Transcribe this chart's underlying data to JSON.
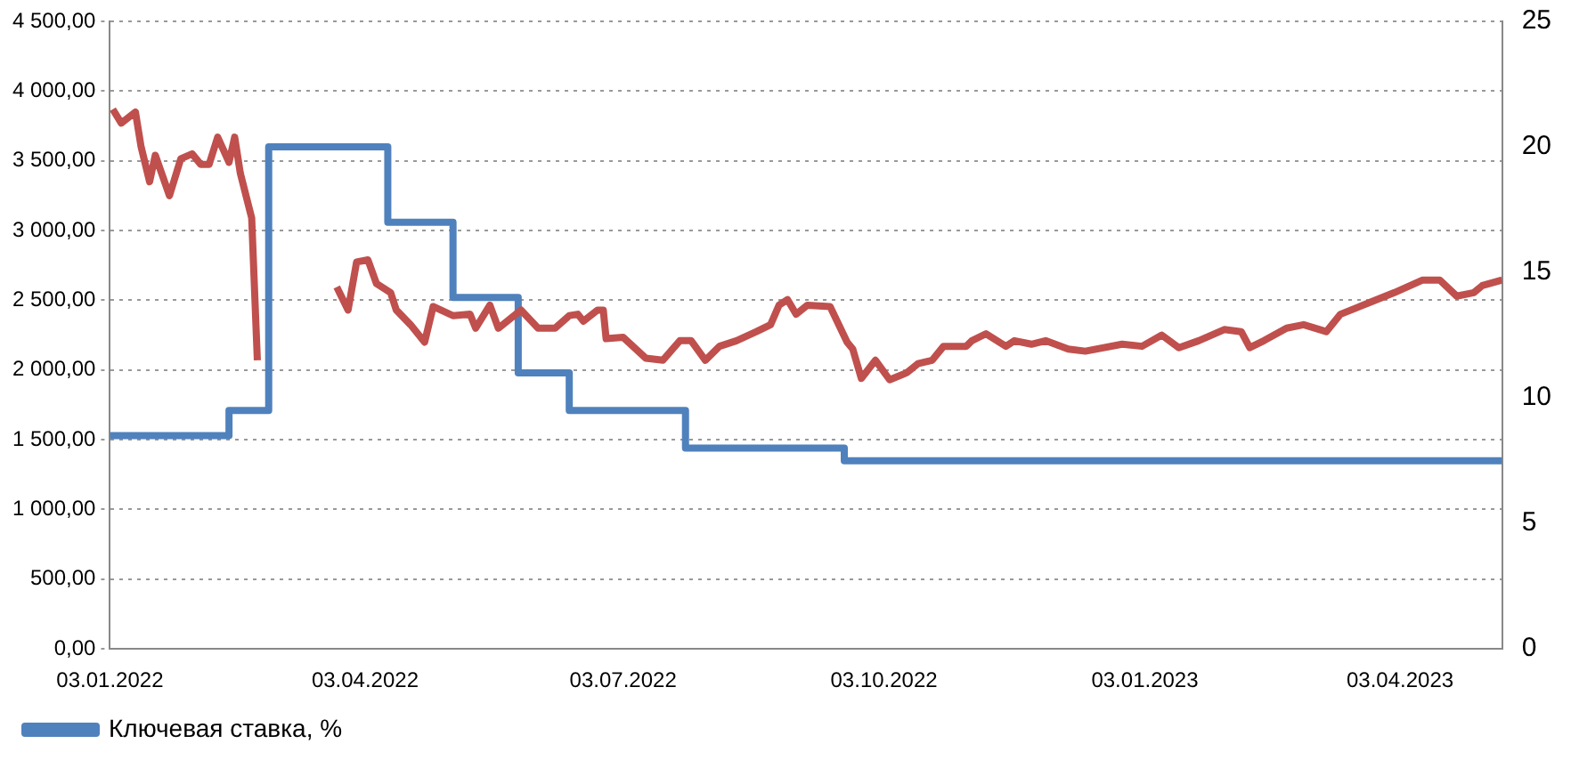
{
  "chart_data": {
    "type": "line",
    "grid": "y",
    "legend": "bottom",
    "marker": "none",
    "xlim": [
      "2022-01-03",
      "2023-05-09"
    ],
    "xticks": [
      {
        "value": "2022-01-03",
        "label": "03.01.2022"
      },
      {
        "value": "2022-04-03",
        "label": "03.04.2022"
      },
      {
        "value": "2022-07-03",
        "label": "03.07.2022"
      },
      {
        "value": "2022-10-03",
        "label": "03.10.2022"
      },
      {
        "value": "2023-01-03",
        "label": "03.01.2023"
      },
      {
        "value": "2023-04-03",
        "label": "03.04.2023"
      }
    ],
    "ylim": [
      0,
      4500
    ],
    "yticks": [
      {
        "value": 0,
        "label": "0,00"
      },
      {
        "value": 500,
        "label": "500,00"
      },
      {
        "value": 1000,
        "label": "1 000,00"
      },
      {
        "value": 1500,
        "label": "1 500,00"
      },
      {
        "value": 2000,
        "label": "2 000,00"
      },
      {
        "value": 2500,
        "label": "2 500,00"
      },
      {
        "value": 3000,
        "label": "3 000,00"
      },
      {
        "value": 3500,
        "label": "3 500,00"
      },
      {
        "value": 4000,
        "label": "4 000,00"
      },
      {
        "value": 4500,
        "label": "4 500,00"
      }
    ],
    "y2lim": [
      0,
      25
    ],
    "y2ticks": [
      0,
      5,
      10,
      15,
      20,
      25
    ],
    "series": [
      {
        "type": "line",
        "color": "#c0504d",
        "x": [
          "2022-01-04",
          "2022-01-07",
          "2022-01-12",
          "2022-01-14",
          "2022-01-17",
          "2022-01-19",
          "2022-01-24",
          "2022-01-28",
          "2022-02-01",
          "2022-02-04",
          "2022-02-07",
          "2022-02-10",
          "2022-02-14",
          "2022-02-16",
          "2022-02-18",
          "2022-02-22",
          "2022-02-24",
          "2022-03-10",
          "2022-03-24",
          "2022-03-28",
          "2022-03-31",
          "2022-04-04",
          "2022-04-07",
          "2022-04-12",
          "2022-04-14",
          "2022-04-19",
          "2022-04-24",
          "2022-04-27",
          "2022-05-04",
          "2022-05-10",
          "2022-05-12",
          "2022-05-17",
          "2022-05-20",
          "2022-05-28",
          "2022-06-03",
          "2022-06-09",
          "2022-06-14",
          "2022-06-17",
          "2022-06-19",
          "2022-06-24",
          "2022-06-26",
          "2022-06-27",
          "2022-07-03",
          "2022-07-11",
          "2022-07-17",
          "2022-07-23",
          "2022-07-27",
          "2022-08-01",
          "2022-08-06",
          "2022-08-12",
          "2022-08-19",
          "2022-08-24",
          "2022-08-27",
          "2022-08-30",
          "2022-09-02",
          "2022-09-06",
          "2022-09-14",
          "2022-09-20",
          "2022-09-22",
          "2022-09-25",
          "2022-09-30",
          "2022-10-05",
          "2022-10-11",
          "2022-10-15",
          "2022-10-20",
          "2022-10-24",
          "2022-11-01",
          "2022-11-03",
          "2022-11-08",
          "2022-11-15",
          "2022-11-18",
          "2022-11-24",
          "2022-11-29",
          "2022-12-07",
          "2022-12-13",
          "2022-12-26",
          "2023-01-02",
          "2023-01-09",
          "2023-01-15",
          "2023-01-22",
          "2023-01-31",
          "2023-02-06",
          "2023-02-09",
          "2023-02-14",
          "2023-02-22",
          "2023-02-28",
          "2023-03-08",
          "2023-03-13",
          "2023-03-24",
          "2023-04-01",
          "2023-04-11",
          "2023-04-17",
          "2023-04-23",
          "2023-04-29",
          "2023-05-02",
          "2023-05-09"
        ],
        "values": [
          3870,
          3770,
          3850,
          3600,
          3350,
          3540,
          3250,
          3515,
          3550,
          3475,
          3475,
          3670,
          3490,
          3670,
          3410,
          3090,
          2070,
          null,
          2595,
          2430,
          2775,
          2790,
          2620,
          2555,
          2430,
          2325,
          2200,
          2455,
          2390,
          2400,
          2300,
          2465,
          2300,
          2430,
          2300,
          2300,
          2390,
          2400,
          2350,
          2430,
          2430,
          2225,
          2235,
          2085,
          2070,
          2210,
          2210,
          2070,
          2170,
          2210,
          2275,
          2325,
          2465,
          2505,
          2400,
          2465,
          2455,
          2200,
          2150,
          1940,
          2070,
          1930,
          1980,
          2045,
          2070,
          2170,
          2170,
          2210,
          2260,
          2170,
          2210,
          2185,
          2210,
          2150,
          2135,
          2185,
          2170,
          2250,
          2160,
          2210,
          2290,
          2275,
          2160,
          2210,
          2300,
          2325,
          2275,
          2400,
          2490,
          2555,
          2645,
          2645,
          2530,
          2555,
          2605,
          2645
        ]
      },
      {
        "type": "step",
        "axis": "y2",
        "name": "Ключевая ставка, %",
        "color": "#4f81bd",
        "x": [
          "2022-01-03",
          "2022-02-14",
          "2022-02-28",
          "2022-04-11",
          "2022-05-04",
          "2022-05-27",
          "2022-06-14",
          "2022-07-25",
          "2022-09-19",
          "2023-05-09"
        ],
        "values": [
          8.5,
          9.5,
          20,
          17,
          14,
          11,
          9.5,
          8,
          7.5,
          7.5
        ]
      }
    ]
  }
}
